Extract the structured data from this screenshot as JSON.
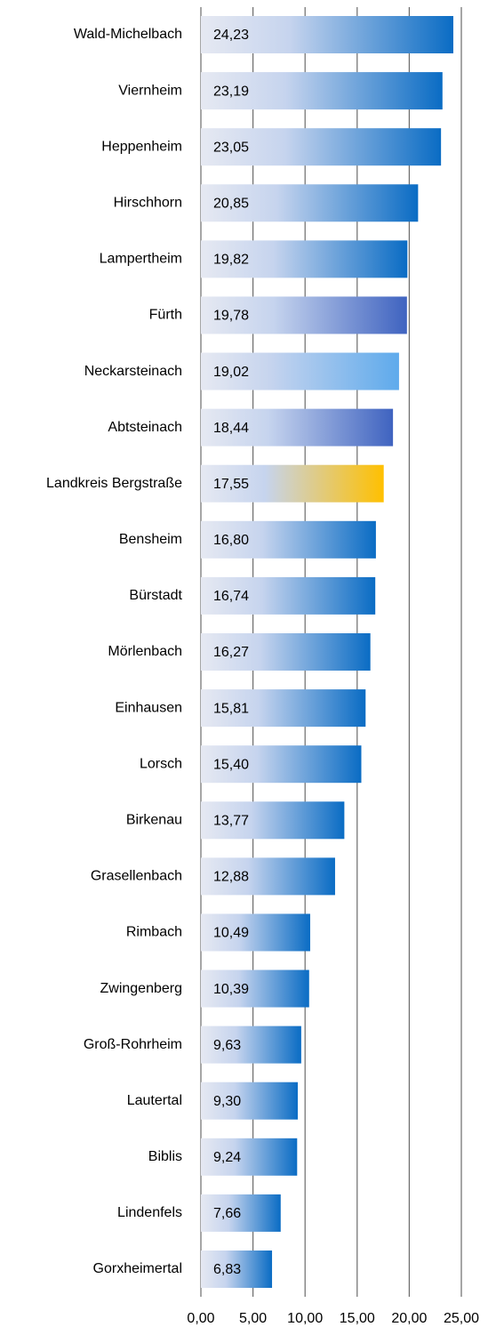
{
  "chart_data": {
    "type": "bar",
    "orientation": "horizontal",
    "categories": [
      "Wald-Michelbach",
      "Viernheim",
      "Heppenheim",
      "Hirschhorn",
      "Lampertheim",
      "Fürth",
      "Neckarsteinach",
      "Abtsteinach",
      "Landkreis Bergstraße",
      "Bensheim",
      "Bürstadt",
      "Mörlenbach",
      "Einhausen",
      "Lorsch",
      "Birkenau",
      "Grasellenbach",
      "Rimbach",
      "Zwingenberg",
      "Groß-Rohrheim",
      "Lautertal",
      "Biblis",
      "Lindenfels",
      "Gorxheimertal"
    ],
    "values": [
      24.23,
      23.19,
      23.05,
      20.85,
      19.82,
      19.78,
      19.02,
      18.44,
      17.55,
      16.8,
      16.74,
      16.27,
      15.81,
      15.4,
      13.77,
      12.88,
      10.49,
      10.39,
      9.63,
      9.3,
      9.24,
      7.66,
      6.83
    ],
    "value_labels": [
      "24,23",
      "23,19",
      "23,05",
      "20,85",
      "19,82",
      "19,78",
      "19,02",
      "18,44",
      "17,55",
      "16,80",
      "16,74",
      "16,27",
      "15,81",
      "15,40",
      "13,77",
      "12,88",
      "10,49",
      "10,39",
      "9,63",
      "9,30",
      "9,24",
      "7,66",
      "6,83"
    ],
    "colors": [
      "#0a6cc4",
      "#0a6cc4",
      "#0a6cc4",
      "#0a6cc4",
      "#0a6cc4",
      "#3f63c0",
      "#5eaaec",
      "#3f63c0",
      "#ffc000",
      "#0a6cc4",
      "#0a6cc4",
      "#0a6cc4",
      "#0a6cc4",
      "#0a6cc4",
      "#0a6cc4",
      "#0a6cc4",
      "#0a6cc4",
      "#0a6cc4",
      "#0a6cc4",
      "#0a6cc4",
      "#0a6cc4",
      "#0a6cc4",
      "#0a6cc4"
    ],
    "xlim": [
      0,
      25
    ],
    "xticks": [
      {
        "value": 0,
        "label": "0,00"
      },
      {
        "value": 5,
        "label": "5,00"
      },
      {
        "value": 10,
        "label": "10,00"
      },
      {
        "value": 15,
        "label": "15,00"
      },
      {
        "value": 20,
        "label": "20,00"
      },
      {
        "value": 25,
        "label": "25,00"
      }
    ],
    "grid": true
  }
}
